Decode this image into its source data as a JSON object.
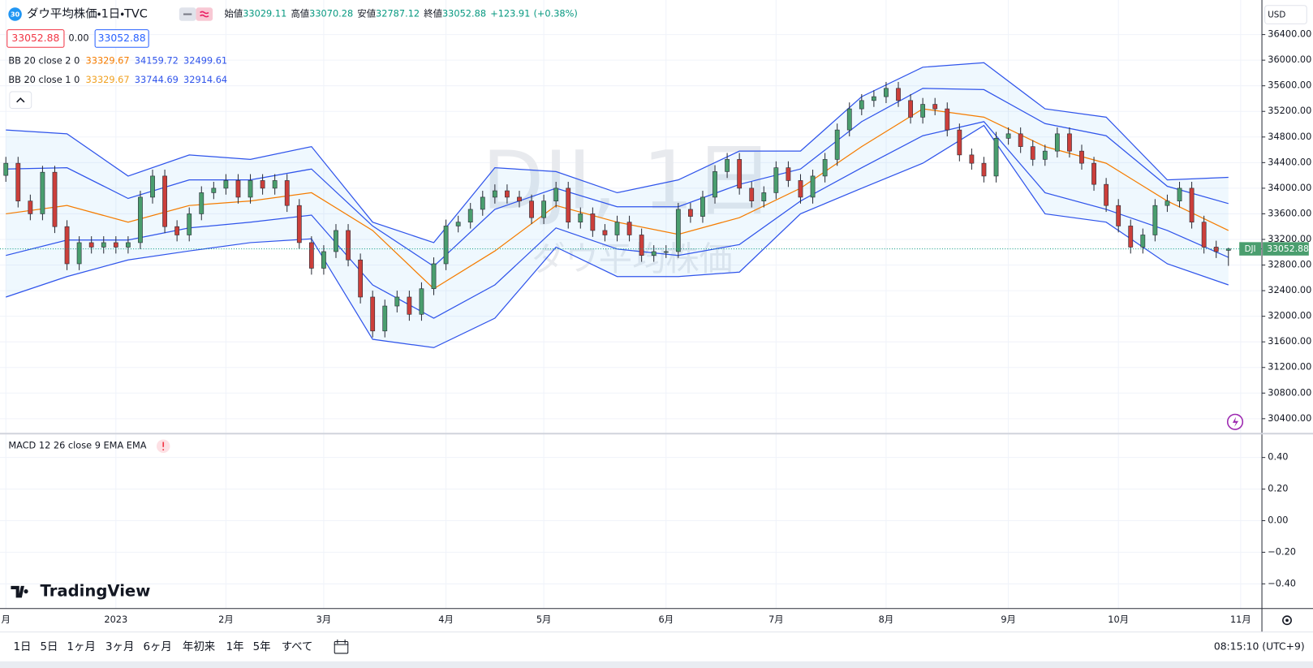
{
  "chart_data": [
    {
      "type": "candlestick",
      "title": "ダウ平均株価・1日・TVC",
      "badge": "30",
      "symbol_code": "DJI",
      "currency": "USD",
      "stats": [
        {
          "label": "始値",
          "value": 33029.11
        },
        {
          "label": "高値",
          "value": 33070.28
        },
        {
          "label": "安値",
          "value": 32787.12
        },
        {
          "label": "終値",
          "value": 33052.88
        }
      ],
      "change": {
        "value": 123.91,
        "label": "+123.91"
      },
      "change_pct": {
        "value": 0.38,
        "label": "(+0.38%)"
      },
      "trade": {
        "sell": 33052.88,
        "spread": {
          "value": 0,
          "label": "0.00"
        },
        "buy": 33052.88
      },
      "watermark": {
        "line1": "DJI, 1日",
        "line2": "ダウ平均株価"
      },
      "colors": {
        "up": "#4a9e6e",
        "down": "#cc3f3a",
        "stat_value": "#089981"
      },
      "categories": [
        "月",
        null,
        null,
        null,
        null,
        null,
        null,
        null,
        null,
        "2023",
        null,
        null,
        null,
        null,
        null,
        null,
        null,
        null,
        "2月",
        null,
        null,
        null,
        null,
        null,
        null,
        null,
        "3月",
        null,
        null,
        null,
        null,
        null,
        null,
        null,
        null,
        null,
        "4月",
        null,
        null,
        null,
        null,
        null,
        null,
        null,
        "5月",
        null,
        null,
        null,
        null,
        null,
        null,
        null,
        null,
        null,
        "6月",
        null,
        null,
        null,
        null,
        null,
        null,
        null,
        null,
        "7月",
        null,
        null,
        null,
        null,
        null,
        null,
        null,
        null,
        "8月",
        null,
        null,
        null,
        null,
        null,
        null,
        null,
        null,
        null,
        "9月",
        null,
        null,
        null,
        null,
        null,
        null,
        null,
        null,
        "10月",
        null,
        null,
        null,
        null,
        null,
        null,
        null,
        null,
        null,
        "11月"
      ],
      "ohlc": [
        [
          34200,
          34490,
          34100,
          34390
        ],
        [
          34390,
          34490,
          33700,
          33800
        ],
        [
          33800,
          33900,
          33500,
          33600
        ],
        [
          33600,
          34350,
          33500,
          34250
        ],
        [
          34250,
          34350,
          33300,
          33400
        ],
        [
          33400,
          33500,
          32720,
          32820
        ],
        [
          32820,
          33250,
          32720,
          33150
        ],
        [
          33150,
          33250,
          32980,
          33080
        ],
        [
          33080,
          33250,
          32980,
          33150
        ],
        [
          33150,
          33250,
          32980,
          33080
        ],
        [
          33080,
          33250,
          32980,
          33150
        ],
        [
          33150,
          33960,
          33050,
          33860
        ],
        [
          33860,
          34290,
          33760,
          34190
        ],
        [
          34190,
          34290,
          33300,
          33400
        ],
        [
          33400,
          33500,
          33170,
          33270
        ],
        [
          33270,
          33700,
          33170,
          33600
        ],
        [
          33600,
          34030,
          33500,
          33930
        ],
        [
          33930,
          34100,
          33830,
          34000
        ],
        [
          34000,
          34220,
          33900,
          34120
        ],
        [
          34120,
          34220,
          33760,
          33860
        ],
        [
          33860,
          34220,
          33760,
          34120
        ],
        [
          34120,
          34220,
          33900,
          34000
        ],
        [
          34000,
          34220,
          33900,
          34120
        ],
        [
          34120,
          34220,
          33630,
          33730
        ],
        [
          33730,
          33830,
          33050,
          33150
        ],
        [
          33150,
          33250,
          32650,
          32750
        ],
        [
          32750,
          33110,
          32650,
          33010
        ],
        [
          33010,
          33440,
          32910,
          33340
        ],
        [
          33340,
          33440,
          32780,
          32880
        ],
        [
          32880,
          32980,
          32200,
          32300
        ],
        [
          32300,
          32400,
          31670,
          31770
        ],
        [
          31770,
          32260,
          31670,
          32160
        ],
        [
          32160,
          32400,
          32060,
          32300
        ],
        [
          32300,
          32400,
          31930,
          32030
        ],
        [
          32030,
          32530,
          31930,
          32430
        ],
        [
          32430,
          32920,
          32330,
          32820
        ],
        [
          32820,
          33510,
          32720,
          33410
        ],
        [
          33410,
          33570,
          33310,
          33470
        ],
        [
          33470,
          33770,
          33370,
          33670
        ],
        [
          33670,
          33960,
          33570,
          33860
        ],
        [
          33860,
          34060,
          33760,
          33960
        ],
        [
          33960,
          34060,
          33760,
          33860
        ],
        [
          33860,
          33960,
          33700,
          33800
        ],
        [
          33800,
          33900,
          33440,
          33540
        ],
        [
          33540,
          33900,
          33440,
          33800
        ],
        [
          33800,
          34100,
          33700,
          34000
        ],
        [
          34000,
          34100,
          33370,
          33470
        ],
        [
          33470,
          33700,
          33370,
          33600
        ],
        [
          33600,
          33700,
          33240,
          33340
        ],
        [
          33340,
          33440,
          33170,
          33270
        ],
        [
          33270,
          33570,
          33170,
          33470
        ],
        [
          33470,
          33570,
          33170,
          33270
        ],
        [
          33270,
          33370,
          32850,
          32950
        ],
        [
          32950,
          33110,
          32850,
          33010
        ],
        [
          33010,
          33110,
          32910,
          33010
        ],
        [
          33010,
          33770,
          32910,
          33670
        ],
        [
          33670,
          33770,
          33460,
          33560
        ],
        [
          33560,
          33960,
          33460,
          33860
        ],
        [
          33860,
          34360,
          33760,
          34260
        ],
        [
          34260,
          34550,
          34160,
          34450
        ],
        [
          34450,
          34550,
          33900,
          34000
        ],
        [
          34000,
          34100,
          33700,
          33800
        ],
        [
          33800,
          34030,
          33700,
          33930
        ],
        [
          33930,
          34420,
          33830,
          34320
        ],
        [
          34320,
          34420,
          34020,
          34120
        ],
        [
          34120,
          34220,
          33760,
          33860
        ],
        [
          33860,
          34290,
          33760,
          34190
        ],
        [
          34190,
          34550,
          34090,
          34450
        ],
        [
          34450,
          35010,
          34350,
          34910
        ],
        [
          34910,
          35340,
          34810,
          35240
        ],
        [
          35240,
          35470,
          35140,
          35370
        ],
        [
          35370,
          35530,
          35270,
          35430
        ],
        [
          35430,
          35660,
          35330,
          35560
        ],
        [
          35560,
          35660,
          35270,
          35370
        ],
        [
          35370,
          35470,
          35010,
          35110
        ],
        [
          35110,
          35410,
          35010,
          35310
        ],
        [
          35310,
          35410,
          35140,
          35240
        ],
        [
          35240,
          35340,
          34810,
          34910
        ],
        [
          34910,
          35010,
          34420,
          34520
        ],
        [
          34520,
          34620,
          34290,
          34390
        ],
        [
          34390,
          34490,
          34090,
          34190
        ],
        [
          34190,
          34880,
          34090,
          34780
        ],
        [
          34780,
          34950,
          34680,
          34850
        ],
        [
          34850,
          34950,
          34550,
          34650
        ],
        [
          34650,
          34750,
          34350,
          34450
        ],
        [
          34450,
          34680,
          34350,
          34580
        ],
        [
          34580,
          34950,
          34480,
          34850
        ],
        [
          34850,
          34950,
          34480,
          34580
        ],
        [
          34580,
          34680,
          34290,
          34390
        ],
        [
          34390,
          34490,
          33960,
          34060
        ],
        [
          34060,
          34160,
          33630,
          33730
        ],
        [
          33730,
          33830,
          33310,
          33410
        ],
        [
          33410,
          33510,
          32980,
          33080
        ],
        [
          33080,
          33370,
          32980,
          33270
        ],
        [
          33270,
          33830,
          33170,
          33730
        ],
        [
          33730,
          33900,
          33630,
          33800
        ],
        [
          33800,
          34100,
          33700,
          34000
        ],
        [
          34000,
          34100,
          33370,
          33470
        ],
        [
          33470,
          33570,
          32980,
          33080
        ],
        [
          33080,
          33180,
          32910,
          33010
        ],
        [
          33029.11,
          33070.28,
          32787.12,
          33052.88
        ],
        null
      ],
      "bollinger": [
        {
          "label": "BB 20 close 2 0",
          "basis": 33329.67,
          "upper": 34159.72,
          "lower": 32499.61,
          "colors": {
            "basis": "#f57c00",
            "band": "#2f54eb"
          },
          "x": [
            0,
            5,
            10,
            15,
            20,
            25,
            30,
            35,
            40,
            45,
            50,
            55,
            60,
            65,
            70,
            75,
            80,
            85,
            90,
            95,
            100
          ],
          "upper_line": [
            34910,
            34850,
            34190,
            34520,
            34450,
            34650,
            33470,
            33150,
            34320,
            34260,
            33930,
            34130,
            34580,
            34580,
            35430,
            35890,
            35960,
            35240,
            35110,
            34130,
            34170
          ],
          "lower_line": [
            32300,
            32620,
            32880,
            33020,
            33150,
            33210,
            31640,
            31510,
            31970,
            33080,
            32620,
            32620,
            32690,
            33600,
            34000,
            34390,
            34980,
            33600,
            33470,
            32820,
            32490
          ],
          "basis_line": [
            33600,
            33730,
            33470,
            33730,
            33800,
            33930,
            33340,
            32430,
            33020,
            33730,
            33470,
            33280,
            33540,
            34000,
            34650,
            35240,
            35110,
            34650,
            34390,
            33800,
            33340
          ]
        },
        {
          "label": "BB 20 close 1 0",
          "basis": 33329.67,
          "upper": 33744.69,
          "lower": 32914.64,
          "colors": {
            "basis": "#f0a020",
            "band": "#2f54eb"
          },
          "x": [
            0,
            5,
            10,
            15,
            20,
            25,
            30,
            35,
            40,
            45,
            50,
            55,
            60,
            65,
            70,
            75,
            80,
            85,
            90,
            95,
            100
          ],
          "upper_line": [
            34300,
            34320,
            33840,
            34130,
            34130,
            34300,
            33410,
            32780,
            33670,
            34000,
            33710,
            33710,
            34060,
            34300,
            35040,
            35560,
            35540,
            35010,
            34820,
            34030,
            33760
          ],
          "lower_line": [
            32950,
            33190,
            33190,
            33380,
            33470,
            33580,
            32490,
            31970,
            32490,
            33380,
            33050,
            32950,
            33120,
            33800,
            34320,
            34820,
            35040,
            33930,
            33670,
            33340,
            32920
          ]
        }
      ],
      "ylim": [
        30180,
        36940
      ],
      "yticks": [
        {
          "value": 36400,
          "label": "36400.00"
        },
        {
          "value": 36000,
          "label": "36000.00"
        },
        {
          "value": 35600,
          "label": "35600.00"
        },
        {
          "value": 35200,
          "label": "35200.00"
        },
        {
          "value": 34800,
          "label": "34800.00"
        },
        {
          "value": 34400,
          "label": "34400.00"
        },
        {
          "value": 34000,
          "label": "34000.00"
        },
        {
          "value": 33600,
          "label": "33600.00"
        },
        {
          "value": 33200,
          "label": "33200.00"
        },
        {
          "value": 32800,
          "label": "32800.00"
        },
        {
          "value": 32400,
          "label": "32400.00"
        },
        {
          "value": 32000,
          "label": "32000.00"
        },
        {
          "value": 31600,
          "label": "31600.00"
        },
        {
          "value": 31200,
          "label": "31200.00"
        },
        {
          "value": 30800,
          "label": "30800.00"
        },
        {
          "value": 30400,
          "label": "30400.00"
        }
      ],
      "grid": true
    },
    {
      "type": "indicator-pane",
      "title": "MACD 12 26 close 9 EMA EMA",
      "ylim": [
        -0.53,
        0.53
      ],
      "yticks": [
        {
          "value": 0.4,
          "label": "0.40"
        },
        {
          "value": 0.2,
          "label": "0.20"
        },
        {
          "value": 0,
          "label": "0.00"
        },
        {
          "value": -0.2,
          "label": "−0.20"
        },
        {
          "value": -0.4,
          "label": "−0.40"
        }
      ],
      "grid": true
    }
  ],
  "ui": {
    "logo": "TradingView",
    "timeframes": [
      "1日",
      "5日",
      "1ヶ月",
      "3ヶ月",
      "6ヶ月",
      "年初来",
      "1年",
      "5年",
      "すべて"
    ],
    "clock": "08:15:10 (UTC+9)"
  }
}
